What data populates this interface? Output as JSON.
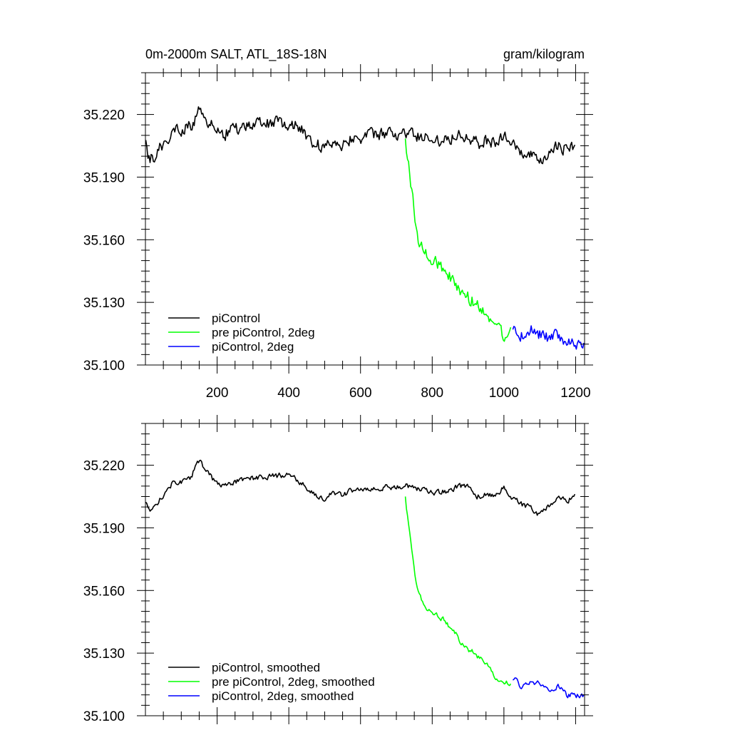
{
  "chart_data": [
    {
      "type": "line",
      "title_left": "0m-2000m SALT, ATL_18S-18N",
      "title_right": "gram/kilogram",
      "xlim": [
        0,
        1225
      ],
      "ylim": [
        35.1,
        35.24
      ],
      "x_ticks": [
        200,
        400,
        600,
        800,
        1000,
        1200
      ],
      "x_tick_labels": [
        "200",
        "400",
        "600",
        "800",
        "1000",
        "1200"
      ],
      "y_ticks": [
        35.1,
        35.13,
        35.16,
        35.19,
        35.22
      ],
      "y_tick_labels": [
        "35.100",
        "35.130",
        "35.160",
        "35.190",
        "35.220"
      ],
      "grid": false,
      "legend_position": "bottom-left",
      "noise": 0.0028,
      "series": [
        {
          "name": "piControl",
          "color": "#000000",
          "x": [
            1,
            10,
            25,
            50,
            75,
            100,
            125,
            150,
            175,
            200,
            225,
            250,
            275,
            300,
            325,
            350,
            375,
            400,
            425,
            450,
            475,
            500,
            525,
            550,
            575,
            600,
            625,
            650,
            675,
            700,
            725,
            750,
            775,
            800,
            825,
            850,
            875,
            900,
            925,
            950,
            975,
            1000,
            1025,
            1050,
            1075,
            1100,
            1125,
            1150,
            1175,
            1200
          ],
          "values": [
            35.205,
            35.198,
            35.2,
            35.206,
            35.212,
            35.213,
            35.214,
            35.222,
            35.217,
            35.211,
            35.211,
            35.213,
            35.214,
            35.215,
            35.215,
            35.216,
            35.216,
            35.216,
            35.214,
            35.21,
            35.206,
            35.204,
            35.207,
            35.206,
            35.209,
            35.209,
            35.21,
            35.21,
            35.211,
            35.21,
            35.211,
            35.21,
            35.209,
            35.208,
            35.208,
            35.209,
            35.211,
            35.21,
            35.206,
            35.207,
            35.207,
            35.21,
            35.205,
            35.201,
            35.2,
            35.196,
            35.2,
            35.206,
            35.203,
            35.205
          ]
        },
        {
          "name": "pre piControl, 2deg",
          "color": "#00ff00",
          "x": [
            725,
            735,
            745,
            755,
            765,
            775,
            785,
            800,
            815,
            830,
            850,
            870,
            890,
            910,
            930,
            950,
            970,
            985,
            1000,
            1010,
            1020
          ],
          "values": [
            35.206,
            35.195,
            35.18,
            35.165,
            35.158,
            35.155,
            35.152,
            35.151,
            35.149,
            35.146,
            35.142,
            35.137,
            35.133,
            35.131,
            35.128,
            35.125,
            35.121,
            35.118,
            35.114,
            35.116,
            35.117
          ]
        },
        {
          "name": "piControl, 2deg",
          "color": "#0000ff",
          "x": [
            1025,
            1050,
            1075,
            1100,
            1125,
            1150,
            1175,
            1200,
            1225
          ],
          "values": [
            35.118,
            35.114,
            35.117,
            35.115,
            35.113,
            35.114,
            35.11,
            35.11,
            35.108
          ]
        }
      ]
    },
    {
      "type": "line",
      "xlim": [
        0,
        1225
      ],
      "ylim": [
        35.1,
        35.24
      ],
      "x_ticks": [
        200,
        400,
        600,
        800,
        1000,
        1200
      ],
      "y_ticks": [
        35.1,
        35.13,
        35.16,
        35.19,
        35.22
      ],
      "y_tick_labels": [
        "35.100",
        "35.130",
        "35.160",
        "35.190",
        "35.220"
      ],
      "grid": false,
      "legend_position": "bottom-left",
      "noise": 0.0012,
      "series": [
        {
          "name": "piControl, smoothed",
          "color": "#000000",
          "x": [
            1,
            10,
            25,
            50,
            75,
            100,
            125,
            150,
            175,
            200,
            225,
            250,
            275,
            300,
            325,
            350,
            375,
            400,
            425,
            450,
            475,
            500,
            525,
            550,
            575,
            600,
            625,
            650,
            675,
            700,
            725,
            750,
            775,
            800,
            825,
            850,
            875,
            900,
            925,
            950,
            975,
            1000,
            1025,
            1050,
            1075,
            1100,
            1125,
            1150,
            1175,
            1200
          ],
          "values": [
            35.203,
            35.198,
            35.2,
            35.206,
            35.211,
            35.212,
            35.214,
            35.222,
            35.216,
            35.211,
            35.21,
            35.212,
            35.213,
            35.214,
            35.214,
            35.215,
            35.215,
            35.216,
            35.213,
            35.209,
            35.205,
            35.204,
            35.207,
            35.206,
            35.208,
            35.208,
            35.209,
            35.209,
            35.21,
            35.209,
            35.21,
            35.209,
            35.208,
            35.207,
            35.207,
            35.208,
            35.21,
            35.21,
            35.205,
            35.206,
            35.206,
            35.209,
            35.204,
            35.201,
            35.2,
            35.196,
            35.2,
            35.205,
            35.203,
            35.205
          ]
        },
        {
          "name": "pre piControl, 2deg, smoothed",
          "color": "#00ff00",
          "x": [
            725,
            735,
            745,
            755,
            765,
            775,
            785,
            800,
            815,
            830,
            850,
            870,
            890,
            910,
            930,
            950,
            970,
            985,
            1000,
            1010,
            1020
          ],
          "values": [
            35.204,
            35.19,
            35.178,
            35.163,
            35.157,
            35.154,
            35.151,
            35.15,
            35.148,
            35.146,
            35.142,
            35.138,
            35.133,
            35.131,
            35.128,
            35.125,
            35.12,
            35.117,
            35.115,
            35.116,
            35.116
          ]
        },
        {
          "name": "piControl, 2deg, smoothed",
          "color": "#0000ff",
          "x": [
            1025,
            1050,
            1075,
            1100,
            1125,
            1150,
            1175,
            1200,
            1225
          ],
          "values": [
            35.118,
            35.114,
            35.117,
            35.115,
            35.113,
            35.114,
            35.11,
            35.11,
            35.109
          ]
        }
      ]
    }
  ]
}
